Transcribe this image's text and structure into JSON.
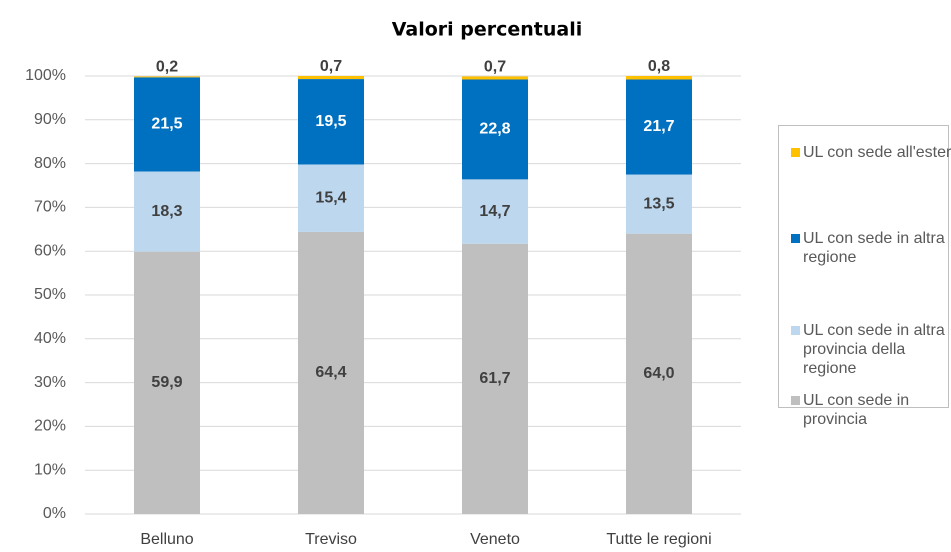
{
  "chart_data": {
    "type": "stacked_bar",
    "title": "Valori percentuali",
    "categories": [
      "Belluno",
      "Treviso",
      "Veneto",
      "Tutte le regioni"
    ],
    "series": [
      {
        "name": "UL con sede in provincia",
        "color": "#bfbfbf",
        "values": [
          59.9,
          64.4,
          61.7,
          64.0
        ],
        "value_labels": [
          "59,9",
          "64,4",
          "61,7",
          "64,0"
        ]
      },
      {
        "name": "UL con sede in altra provincia della regione",
        "color": "#bdd7ee",
        "values": [
          18.3,
          15.4,
          14.7,
          13.5
        ],
        "value_labels": [
          "18,3",
          "15,4",
          "14,7",
          "13,5"
        ]
      },
      {
        "name": "UL con sede in altra regione",
        "color": "#0070c0",
        "values": [
          21.5,
          19.5,
          22.8,
          21.7
        ],
        "value_labels": [
          "21,5",
          "19,5",
          "22,8",
          "21,7"
        ]
      },
      {
        "name": "UL con sede all'estero",
        "color": "#ffc000",
        "values": [
          0.2,
          0.7,
          0.7,
          0.8
        ],
        "value_labels": [
          "0,2",
          "0,7",
          "0,7",
          "0,8"
        ]
      }
    ],
    "ylim": [
      0,
      100
    ],
    "yticks": [
      {
        "value": 0,
        "label": "0%"
      },
      {
        "value": 10,
        "label": "10%"
      },
      {
        "value": 20,
        "label": "20%"
      },
      {
        "value": 30,
        "label": "30%"
      },
      {
        "value": 40,
        "label": "40%"
      },
      {
        "value": 50,
        "label": "50%"
      },
      {
        "value": 60,
        "label": "60%"
      },
      {
        "value": 70,
        "label": "70%"
      },
      {
        "value": 80,
        "label": "80%"
      },
      {
        "value": 90,
        "label": "90%"
      },
      {
        "value": 100,
        "label": "100%"
      }
    ],
    "grid": true,
    "legend": "right"
  }
}
